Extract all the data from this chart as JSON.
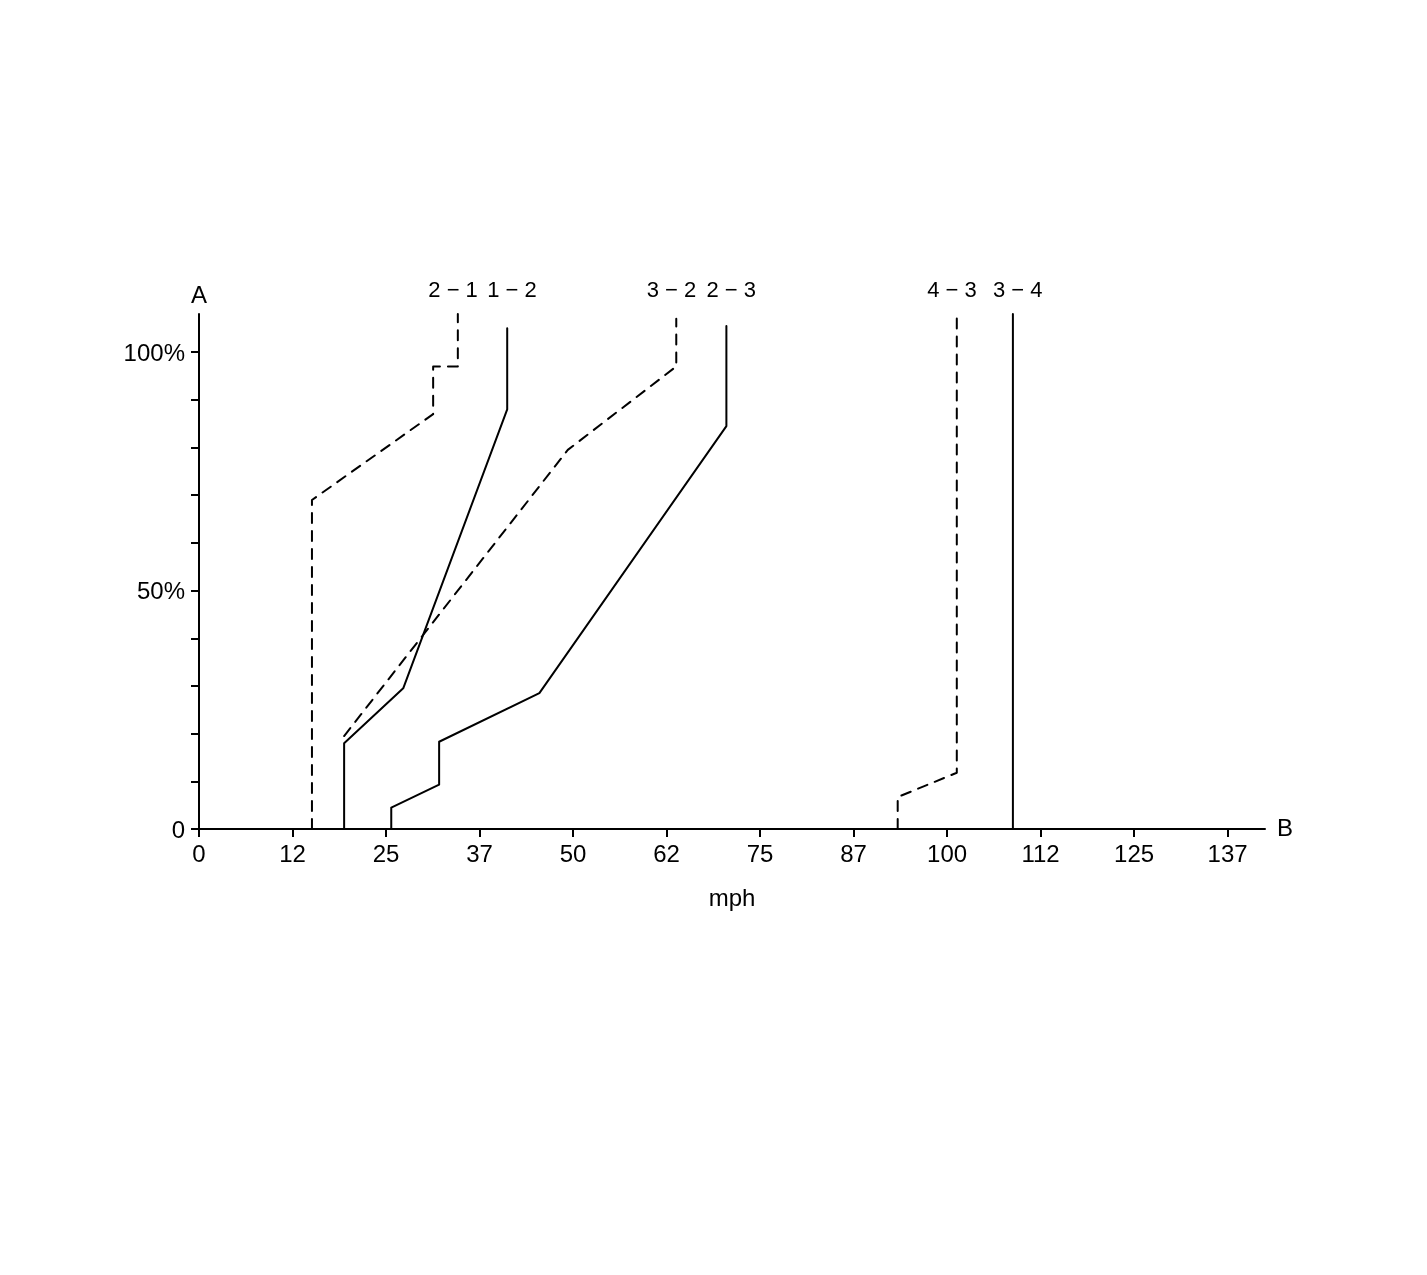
{
  "chart_data": {
    "type": "line",
    "xlabel": "mph",
    "ylabel": "A",
    "annotations": [
      "B"
    ],
    "xlim": [
      0,
      142.5
    ],
    "xticks": [
      0,
      {
        "value": 12.5,
        "label": "12"
      },
      25,
      {
        "value": 37.5,
        "label": "37"
      },
      50,
      {
        "value": 62.5,
        "label": "62"
      },
      75,
      {
        "value": 87.5,
        "label": "87"
      },
      100,
      {
        "value": 112.5,
        "label": "112"
      },
      125,
      {
        "value": 137.5,
        "label": "137"
      }
    ],
    "ylim": [
      0,
      108
    ],
    "yticks": [
      {
        "value": 0,
        "label": "0"
      },
      {
        "value": 10,
        "label": null
      },
      {
        "value": 20,
        "label": null
      },
      {
        "value": 30,
        "label": null
      },
      {
        "value": 40,
        "label": null
      },
      {
        "value": 50,
        "label": "50%"
      },
      {
        "value": 60,
        "label": null
      },
      {
        "value": 70,
        "label": null
      },
      {
        "value": 80,
        "label": null
      },
      {
        "value": 90,
        "label": null
      },
      {
        "value": 100,
        "label": "100%"
      }
    ],
    "grid": false,
    "legend": false,
    "marker": "none",
    "series": [
      {
        "name": "2 − 1",
        "color": "#000000",
        "line_style": "dashed",
        "x": [
          15.1,
          15.1,
          31.3,
          31.3,
          34.6,
          34.6
        ],
        "values": [
          0,
          69,
          87,
          97,
          97,
          108
        ]
      },
      {
        "name": "1 − 2",
        "color": "#000000",
        "line_style": "solid",
        "x": [
          19.4,
          19.4,
          27.3,
          41.2,
          41.2
        ],
        "values": [
          0,
          18,
          29.5,
          88,
          105
        ]
      },
      {
        "name": "3 − 2",
        "color": "#000000",
        "line_style": "dashed",
        "x": [
          19.4,
          49.3,
          63.8,
          63.8
        ],
        "values": [
          19.5,
          79.5,
          97,
          107
        ]
      },
      {
        "name": "2 − 3",
        "color": "#000000",
        "line_style": "solid",
        "x": [
          25.7,
          25.7,
          32.1,
          32.1,
          45.5,
          70.5,
          70.5
        ],
        "values": [
          0,
          4.5,
          9.3,
          18.3,
          28.5,
          84.5,
          105.5
        ]
      },
      {
        "name": "4 − 3",
        "color": "#000000",
        "line_style": "dashed",
        "x": [
          93.4,
          93.4,
          101.3,
          101.3
        ],
        "values": [
          0,
          6.7,
          11.8,
          108
        ]
      },
      {
        "name": "3 − 4",
        "color": "#000000",
        "line_style": "solid",
        "x": [
          108.8,
          108.8
        ],
        "values": [
          0,
          108
        ]
      }
    ]
  }
}
